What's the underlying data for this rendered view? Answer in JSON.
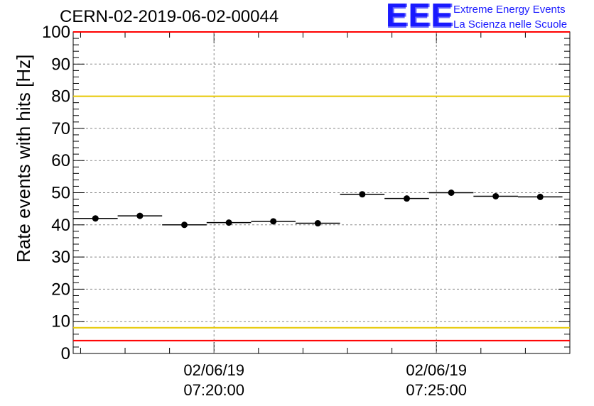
{
  "title": "CERN-02-2019-06-02-00044",
  "logo": {
    "mark": "EEE",
    "line1": "Extreme Energy Events",
    "line2": "La Scienza nelle Scuole"
  },
  "chart_data": {
    "type": "scatter",
    "ylabel": "Rate events with hits [Hz]",
    "ylim": [
      0,
      100
    ],
    "yticks": [
      0,
      10,
      20,
      30,
      40,
      50,
      60,
      70,
      80,
      90,
      100
    ],
    "xlim": [
      "2019-06-02 07:16:50",
      "2019-06-02 07:28:00"
    ],
    "xticks": [
      {
        "date": "02/06/19",
        "time": "07:20:00"
      },
      {
        "date": "02/06/19",
        "time": "07:25:00"
      }
    ],
    "grid": true,
    "bin_width_s": 60,
    "points": [
      {
        "x": "07:17:20",
        "y": 42.0
      },
      {
        "x": "07:18:20",
        "y": 42.8
      },
      {
        "x": "07:19:20",
        "y": 40.0
      },
      {
        "x": "07:20:20",
        "y": 40.7
      },
      {
        "x": "07:21:20",
        "y": 41.1
      },
      {
        "x": "07:22:20",
        "y": 40.5
      },
      {
        "x": "07:23:20",
        "y": 49.5
      },
      {
        "x": "07:24:20",
        "y": 48.2
      },
      {
        "x": "07:25:20",
        "y": 50.0
      },
      {
        "x": "07:26:20",
        "y": 48.9
      },
      {
        "x": "07:27:20",
        "y": 48.7
      }
    ],
    "reference_lines": [
      {
        "y": 100,
        "color": "#ff0000"
      },
      {
        "y": 80,
        "color": "#e6c800"
      },
      {
        "y": 8,
        "color": "#e6c800"
      },
      {
        "y": 4,
        "color": "#ff0000"
      }
    ],
    "colors": {
      "points": "#000000",
      "grid": "#888888"
    }
  }
}
